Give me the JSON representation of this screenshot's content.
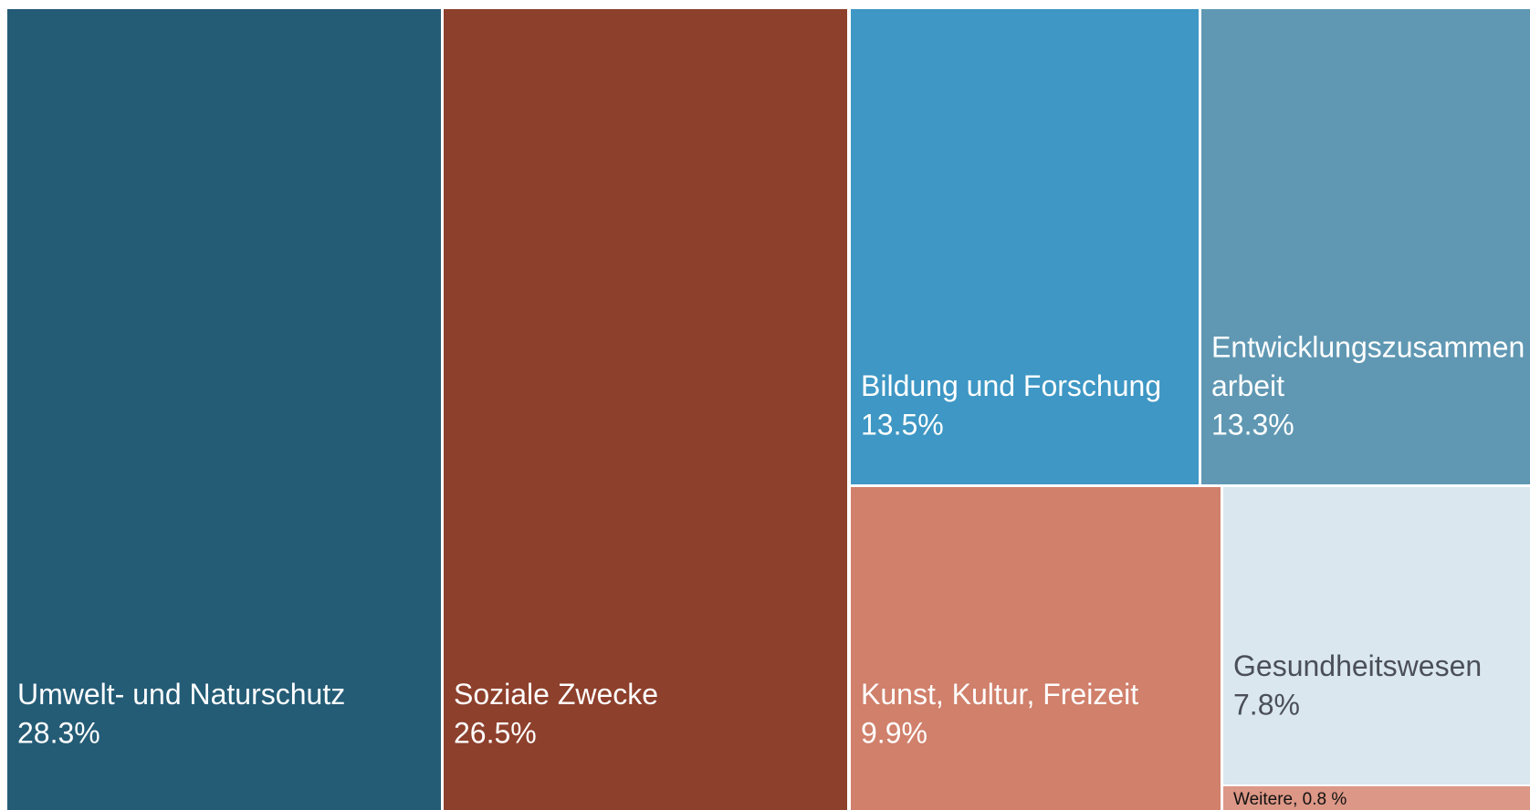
{
  "chart_data": {
    "type": "treemap",
    "categories": [
      "Umwelt- und Naturschutz",
      "Soziale Zwecke",
      "Bildung und Forschung",
      "Entwicklungszusammenarbeit",
      "Kunst, Kultur, Freizeit",
      "Gesundheitswesen",
      "Weitere"
    ],
    "values": [
      28.3,
      26.5,
      13.5,
      13.3,
      9.9,
      7.8,
      0.8
    ],
    "value_labels": [
      "28.3%",
      "26.5%",
      "13.5%",
      "13.3%",
      "9.9%",
      "7.8%",
      ", 0.8 %"
    ],
    "colors": [
      "#245c76",
      "#8d402c",
      "#3e97c4",
      "#6098b3",
      "#d0806b",
      "#dae7ee",
      "#dc9786"
    ]
  }
}
